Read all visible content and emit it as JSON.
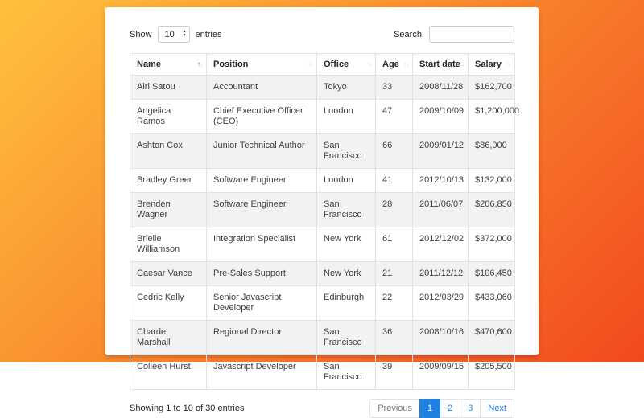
{
  "colors": {
    "bg-grad-start": "#ffc23d",
    "bg-grad-end": "#f2491d",
    "card-bg": "#ffffff",
    "accent": "#1e80df",
    "text": "#212529",
    "muted": "#6c757d",
    "border": "#dee2e6",
    "input-border": "#c8cdd2",
    "stripe": "#f2f2f2"
  },
  "controls": {
    "show_label": "Show",
    "show_value": "10",
    "entries_label": "entries",
    "search_label": "Search:",
    "search_value": ""
  },
  "icons": {
    "sort_up": "↑",
    "sort_down": "↓",
    "select_up": "▲",
    "select_down": "▼"
  },
  "table": {
    "columns": [
      {
        "label": "Name",
        "sort": "asc"
      },
      {
        "label": "Position",
        "sort": "none"
      },
      {
        "label": "Office",
        "sort": "none"
      },
      {
        "label": "Age",
        "sort": "none"
      },
      {
        "label": "Start date",
        "sort": "none"
      },
      {
        "label": "Salary",
        "sort": "none"
      }
    ],
    "rows": [
      {
        "name": "Airi Satou",
        "position": "Accountant",
        "office": "Tokyo",
        "age": "33",
        "start_date": "2008/11/28",
        "salary": "$162,700"
      },
      {
        "name": "Angelica Ramos",
        "position": "Chief Executive Officer (CEO)",
        "office": "London",
        "age": "47",
        "start_date": "2009/10/09",
        "salary": "$1,200,000"
      },
      {
        "name": "Ashton Cox",
        "position": "Junior Technical Author",
        "office": "San Francisco",
        "age": "66",
        "start_date": "2009/01/12",
        "salary": "$86,000"
      },
      {
        "name": "Bradley Greer",
        "position": "Software Engineer",
        "office": "London",
        "age": "41",
        "start_date": "2012/10/13",
        "salary": "$132,000"
      },
      {
        "name": "Brenden Wagner",
        "position": "Software Engineer",
        "office": "San Francisco",
        "age": "28",
        "start_date": "2011/06/07",
        "salary": "$206,850"
      },
      {
        "name": "Brielle Williamson",
        "position": "Integration Specialist",
        "office": "New York",
        "age": "61",
        "start_date": "2012/12/02",
        "salary": "$372,000"
      },
      {
        "name": "Caesar Vance",
        "position": "Pre-Sales Support",
        "office": "New York",
        "age": "21",
        "start_date": "2011/12/12",
        "salary": "$106,450"
      },
      {
        "name": "Cedric Kelly",
        "position": "Senior Javascript Developer",
        "office": "Edinburgh",
        "age": "22",
        "start_date": "2012/03/29",
        "salary": "$433,060"
      },
      {
        "name": "Charde Marshall",
        "position": "Regional Director",
        "office": "San Francisco",
        "age": "36",
        "start_date": "2008/10/16",
        "salary": "$470,600"
      },
      {
        "name": "Colleen Hurst",
        "position": "Javascript Developer",
        "office": "San Francisco",
        "age": "39",
        "start_date": "2009/09/15",
        "salary": "$205,500"
      }
    ]
  },
  "footer": {
    "info": "Showing 1 to 10 of 30 entries",
    "pagination": [
      {
        "label": "Previous",
        "state": "disabled"
      },
      {
        "label": "1",
        "state": "active"
      },
      {
        "label": "2",
        "state": "normal"
      },
      {
        "label": "3",
        "state": "normal"
      },
      {
        "label": "Next",
        "state": "normal"
      }
    ]
  }
}
